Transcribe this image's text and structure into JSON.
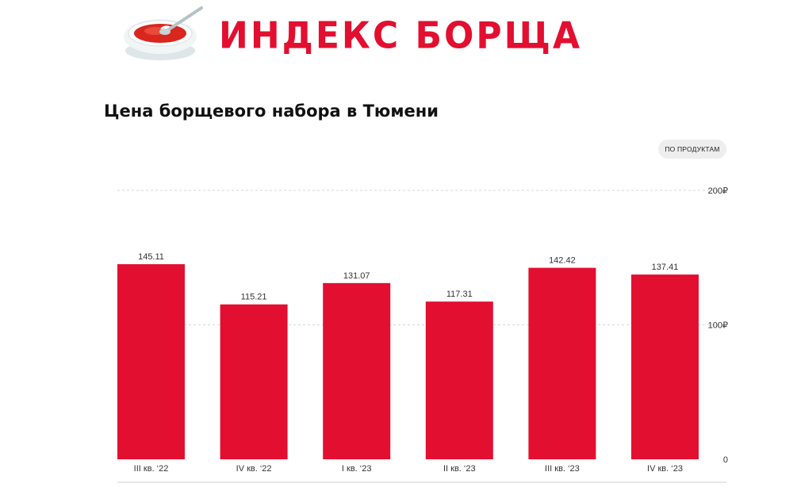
{
  "header": {
    "logo_text": "ИНДЕКС БОРЩА"
  },
  "chart_title": "Цена борщевого набора в Тюмени",
  "filter": {
    "label": "ПО ПРОДУКТАМ"
  },
  "colors": {
    "bar": "#e30f30",
    "brand": "#e30f30",
    "grid": "#d9d9d9"
  },
  "chart_data": {
    "type": "bar",
    "title": "Цена борщевого набора в Тюмени",
    "xlabel": "",
    "ylabel": "",
    "categories": [
      "III кв. ‘22",
      "IV кв. ‘22",
      "I кв. ‘23",
      "II кв. ‘23",
      "III кв. ‘23",
      "IV кв. ‘23"
    ],
    "values": [
      145.11,
      115.21,
      131.07,
      117.31,
      142.42,
      137.41
    ],
    "value_labels": [
      "145.11",
      "115.21",
      "131.07",
      "117.31",
      "142.42",
      "137.41"
    ],
    "ylim": [
      0,
      200
    ],
    "y_ticks": [
      {
        "value": 0,
        "label": "0"
      },
      {
        "value": 100,
        "label": "100₽"
      },
      {
        "value": 200,
        "label": "200₽"
      }
    ],
    "grid": true,
    "legend": "none",
    "y_axis_position": "right"
  }
}
